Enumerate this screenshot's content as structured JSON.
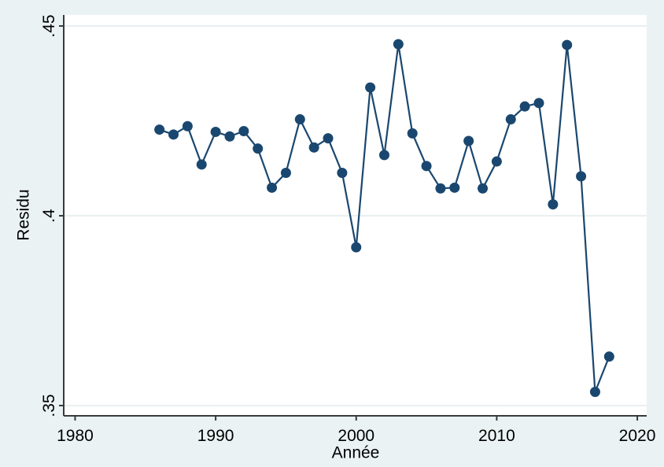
{
  "figure": {
    "background_color": "#eaf2f3",
    "plot_background_color": "#ffffff",
    "grid_color": "#e8eff1",
    "axis_line_color": "#3a3a3a",
    "tick_text_color": "#000000",
    "series_color": "#1a476f"
  },
  "chart_data": {
    "type": "line",
    "title": "",
    "xlabel": "Année",
    "ylabel": "Residu",
    "marker": "circle",
    "grid": true,
    "legend": false,
    "xlim": [
      1979.19,
      2020.67
    ],
    "ylim": [
      0.3473,
      0.4529
    ],
    "x_ticks": {
      "values": [
        1980,
        1990,
        2000,
        2010,
        2020
      ],
      "labels": [
        "1980",
        "1990",
        "2000",
        "2010",
        "2020"
      ]
    },
    "y_ticks": {
      "values": [
        0.35,
        0.4,
        0.45
      ],
      "labels": [
        ".35",
        ".4",
        ".45"
      ]
    },
    "series": [
      {
        "name": "Residu",
        "x": [
          1986,
          1987,
          1988,
          1989,
          1990,
          1991,
          1992,
          1993,
          1994,
          1995,
          1996,
          1997,
          1998,
          1999,
          2000,
          2001,
          2002,
          2003,
          2004,
          2005,
          2006,
          2007,
          2008,
          2009,
          2010,
          2011,
          2012,
          2013,
          2014,
          2015,
          2016,
          2017,
          2018
        ],
        "y": [
          0.4227,
          0.4214,
          0.4236,
          0.4135,
          0.4221,
          0.4209,
          0.4223,
          0.4177,
          0.4074,
          0.4113,
          0.4254,
          0.418,
          0.4204,
          0.4113,
          0.3917,
          0.4338,
          0.416,
          0.4452,
          0.4217,
          0.4131,
          0.4072,
          0.4074,
          0.4197,
          0.4072,
          0.4143,
          0.4254,
          0.4288,
          0.4297,
          0.403,
          0.445,
          0.4104,
          0.3536,
          0.3629
        ]
      }
    ]
  }
}
